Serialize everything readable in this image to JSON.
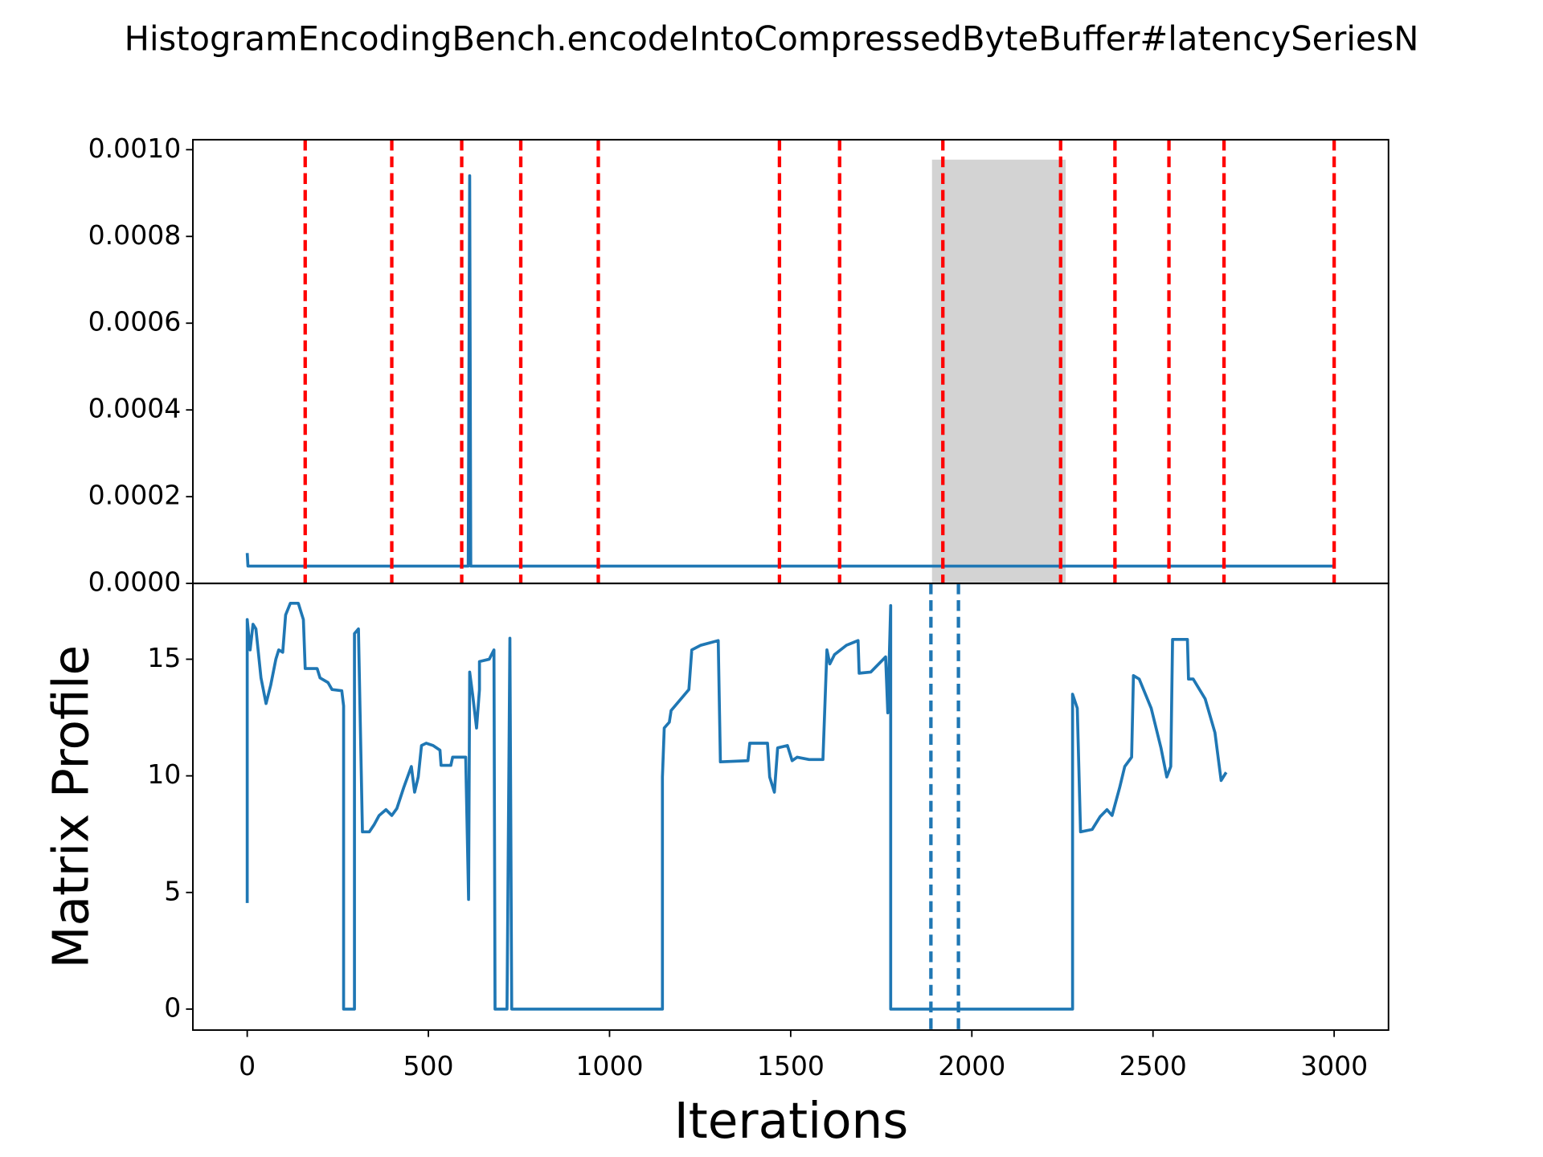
{
  "chart_data": [
    {
      "type": "line",
      "title": "HistogramEncodingBench.encodeIntoCompressedByteBuffer#latencySeriesN",
      "xlim": [
        -150,
        3150
      ],
      "ylim": [
        0,
        0.001023
      ],
      "yticks": [
        {
          "value": 0,
          "label": "0.0000"
        },
        {
          "value": 0.0002,
          "label": "0.0002"
        },
        {
          "value": 0.0004,
          "label": "0.0004"
        },
        {
          "value": 0.0006,
          "label": "0.0006"
        },
        {
          "value": 0.0008,
          "label": "0.0008"
        },
        {
          "value": 0.001,
          "label": "0.0010"
        }
      ],
      "series": [
        {
          "color": "#1f77b4",
          "x": [
            0,
            2,
            10,
            400,
            610,
            614,
            617,
            625,
            1000,
            1500,
            2000,
            2500,
            3000
          ],
          "values": [
            7e-05,
            4e-05,
            4e-05,
            4e-05,
            4e-05,
            0.00094,
            4e-05,
            4e-05,
            4e-05,
            4e-05,
            4e-05,
            4e-05,
            4e-05
          ]
        }
      ],
      "vlines": {
        "x": [
          160,
          399,
          592,
          755,
          969,
          1469,
          1635,
          1920,
          2245,
          2395,
          2544,
          2696,
          3000
        ],
        "color": "red",
        "style": "dashed"
      },
      "span": {
        "x": [
          1890,
          2259
        ],
        "y": [
          0,
          0.000977
        ],
        "color": "#d3d3d3"
      }
    },
    {
      "type": "line",
      "xlabel": "Iterations",
      "ylabel": "Matrix Profile",
      "xlim": [
        -150,
        3150
      ],
      "ylim": [
        -0.9,
        18.25
      ],
      "xticks": [
        0,
        500,
        1000,
        1500,
        2000,
        2500,
        3000
      ],
      "yticks": [
        0,
        5,
        10,
        15
      ],
      "series": [
        {
          "color": "#1f77b4",
          "x": [
            0,
            0,
            8,
            16,
            24,
            38,
            52,
            65,
            79,
            87,
            98,
            106,
            119,
            141,
            155,
            160,
            193,
            201,
            223,
            234,
            261,
            266,
            266,
            296,
            296,
            307,
            318,
            337,
            350,
            364,
            383,
            399,
            413,
            432,
            453,
            462,
            472,
            481,
            494,
            513,
            532,
            535,
            562,
            567,
            603,
            611,
            614,
            622,
            633,
            641,
            641,
            668,
            681,
            684,
            717,
            725,
            730,
            1146,
            1146,
            1151,
            1165,
            1170,
            1219,
            1227,
            1252,
            1300,
            1306,
            1382,
            1387,
            1436,
            1442,
            1455,
            1464,
            1491,
            1504,
            1518,
            1551,
            1589,
            1600,
            1608,
            1621,
            1654,
            1686,
            1689,
            1721,
            1762,
            1768,
            1776,
            1776,
            2278,
            2278,
            2291,
            2300,
            2332,
            2354,
            2373,
            2387,
            2408,
            2422,
            2441,
            2446,
            2462,
            2495,
            2522,
            2538,
            2549,
            2554,
            2595,
            2598,
            2611,
            2644,
            2671,
            2688,
            2702
          ],
          "values": [
            4.55,
            16.7,
            15.4,
            16.5,
            16.3,
            14.2,
            13.1,
            13.9,
            15.0,
            15.4,
            15.3,
            16.9,
            17.4,
            17.4,
            16.7,
            14.6,
            14.6,
            14.2,
            14.0,
            13.7,
            13.65,
            13.0,
            0,
            0,
            16.1,
            16.3,
            7.6,
            7.6,
            7.9,
            8.3,
            8.55,
            8.3,
            8.6,
            9.5,
            10.4,
            9.3,
            9.95,
            11.3,
            11.4,
            11.3,
            11.1,
            10.45,
            10.45,
            10.8,
            10.8,
            4.7,
            14.45,
            13.5,
            12.05,
            13.7,
            14.9,
            15.0,
            15.4,
            0,
            0,
            15.9,
            0,
            0,
            9.95,
            12.05,
            12.3,
            12.8,
            13.7,
            15.4,
            15.6,
            15.8,
            10.6,
            10.65,
            11.4,
            11.4,
            9.95,
            9.3,
            11.2,
            11.3,
            10.65,
            10.8,
            10.7,
            10.7,
            15.4,
            14.8,
            15.2,
            15.6,
            15.8,
            14.4,
            14.45,
            15.1,
            12.7,
            17.3,
            0,
            0,
            13.5,
            12.9,
            7.6,
            7.7,
            8.25,
            8.55,
            8.3,
            9.5,
            10.4,
            10.8,
            14.3,
            14.15,
            12.9,
            11.2,
            9.95,
            10.4,
            15.85,
            15.85,
            14.15,
            14.15,
            13.3,
            11.85,
            9.8,
            10.15
          ]
        }
      ],
      "vlines": {
        "x": [
          1887,
          1963
        ],
        "color": "#1f77b4",
        "style": "dashed"
      }
    }
  ]
}
